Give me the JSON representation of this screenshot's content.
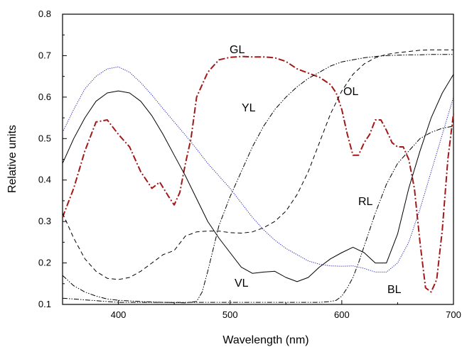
{
  "chart_data": {
    "type": "line",
    "title": "",
    "xlabel": "Wavelength (nm)",
    "ylabel": "Relative units",
    "xlim": [
      350,
      700
    ],
    "ylim": [
      0.1,
      0.8
    ],
    "xticks": [
      400,
      500,
      600,
      700
    ],
    "yticks": [
      0.1,
      0.2,
      0.3,
      0.4,
      0.5,
      0.6,
      0.7,
      0.8
    ],
    "xtick_labels": [
      "400",
      "500",
      "600",
      "700"
    ],
    "ytick_labels": [
      "0.1",
      "0.2",
      "0.3",
      "0.4",
      "0.5",
      "0.6",
      "0.7",
      "0.8"
    ],
    "grid": false,
    "legend": "none",
    "series": [
      {
        "name": "GL",
        "color": "#a01818",
        "dash": "dash-dot",
        "x": [
          350,
          360,
          370,
          380,
          390,
          400,
          410,
          420,
          430,
          437,
          445,
          450,
          455,
          460,
          465,
          470,
          480,
          490,
          500,
          510,
          520,
          530,
          540,
          550,
          560,
          570,
          580,
          590,
          595,
          600,
          605,
          610,
          615,
          620,
          625,
          630,
          635,
          640,
          645,
          650,
          655,
          660,
          665,
          670,
          675,
          680,
          685,
          690,
          695,
          700
        ],
        "y": [
          0.31,
          0.38,
          0.47,
          0.54,
          0.545,
          0.51,
          0.48,
          0.42,
          0.38,
          0.395,
          0.36,
          0.34,
          0.37,
          0.44,
          0.5,
          0.6,
          0.66,
          0.69,
          0.696,
          0.698,
          0.697,
          0.697,
          0.695,
          0.686,
          0.668,
          0.658,
          0.648,
          0.63,
          0.61,
          0.57,
          0.51,
          0.46,
          0.46,
          0.49,
          0.51,
          0.545,
          0.545,
          0.52,
          0.49,
          0.48,
          0.48,
          0.45,
          0.38,
          0.25,
          0.14,
          0.13,
          0.16,
          0.28,
          0.45,
          0.56
        ]
      },
      {
        "name": "OL",
        "color": "#000000",
        "dash": "dashed",
        "x": [
          350,
          360,
          370,
          380,
          390,
          400,
          410,
          420,
          430,
          440,
          450,
          460,
          470,
          480,
          490,
          500,
          510,
          520,
          530,
          540,
          550,
          560,
          570,
          580,
          590,
          600,
          610,
          620,
          630,
          640,
          650,
          660,
          670,
          680,
          690,
          700
        ],
        "y": [
          0.32,
          0.26,
          0.21,
          0.18,
          0.163,
          0.16,
          0.165,
          0.18,
          0.2,
          0.22,
          0.23,
          0.265,
          0.275,
          0.277,
          0.277,
          0.273,
          0.272,
          0.275,
          0.285,
          0.3,
          0.325,
          0.365,
          0.42,
          0.49,
          0.56,
          0.615,
          0.655,
          0.68,
          0.695,
          0.703,
          0.707,
          0.71,
          0.713,
          0.714,
          0.714,
          0.714
        ]
      },
      {
        "name": "YL",
        "color": "#000000",
        "dash": "dash-dot-dot",
        "x": [
          350,
          360,
          370,
          380,
          390,
          400,
          420,
          440,
          460,
          470,
          475,
          480,
          490,
          500,
          510,
          520,
          530,
          540,
          550,
          560,
          570,
          580,
          590,
          600,
          610,
          620,
          630,
          640,
          650,
          660,
          670,
          680,
          690,
          700
        ],
        "y": [
          0.17,
          0.145,
          0.13,
          0.12,
          0.113,
          0.11,
          0.107,
          0.105,
          0.104,
          0.107,
          0.13,
          0.18,
          0.29,
          0.36,
          0.42,
          0.48,
          0.53,
          0.57,
          0.6,
          0.625,
          0.645,
          0.66,
          0.675,
          0.685,
          0.69,
          0.695,
          0.698,
          0.7,
          0.701,
          0.702,
          0.702,
          0.703,
          0.703,
          0.703
        ]
      },
      {
        "name": "VL",
        "color": "#000000",
        "dash": "solid",
        "x": [
          350,
          360,
          370,
          380,
          390,
          400,
          410,
          420,
          430,
          440,
          450,
          460,
          470,
          480,
          490,
          500,
          510,
          520,
          530,
          540,
          550,
          560,
          570,
          580,
          590,
          600,
          610,
          620,
          630,
          640,
          650,
          660,
          670,
          680,
          690,
          700
        ],
        "y": [
          0.44,
          0.5,
          0.55,
          0.59,
          0.61,
          0.615,
          0.61,
          0.59,
          0.555,
          0.51,
          0.46,
          0.41,
          0.355,
          0.3,
          0.26,
          0.225,
          0.19,
          0.175,
          0.178,
          0.18,
          0.165,
          0.155,
          0.165,
          0.19,
          0.21,
          0.225,
          0.238,
          0.225,
          0.2,
          0.2,
          0.27,
          0.38,
          0.47,
          0.55,
          0.61,
          0.655
        ]
      },
      {
        "name": "BL",
        "color": "#2020b0",
        "dash": "dotted",
        "x": [
          350,
          360,
          370,
          380,
          390,
          400,
          410,
          420,
          430,
          440,
          450,
          460,
          470,
          480,
          490,
          500,
          510,
          520,
          530,
          540,
          550,
          560,
          570,
          580,
          590,
          600,
          610,
          620,
          630,
          640,
          650,
          660,
          670,
          680,
          690,
          700
        ],
        "y": [
          0.515,
          0.57,
          0.62,
          0.65,
          0.668,
          0.673,
          0.66,
          0.635,
          0.605,
          0.572,
          0.54,
          0.508,
          0.475,
          0.44,
          0.41,
          0.38,
          0.345,
          0.31,
          0.28,
          0.255,
          0.235,
          0.22,
          0.205,
          0.197,
          0.193,
          0.192,
          0.193,
          0.187,
          0.178,
          0.178,
          0.2,
          0.25,
          0.33,
          0.42,
          0.51,
          0.6
        ]
      },
      {
        "name": "RL",
        "color": "#000000",
        "dash": "dash-dot-dot",
        "x": [
          350,
          400,
          450,
          500,
          550,
          580,
          590,
          595,
          600,
          605,
          610,
          615,
          620,
          630,
          640,
          650,
          660,
          670,
          680,
          690,
          700
        ],
        "y": [
          0.115,
          0.105,
          0.105,
          0.105,
          0.105,
          0.105,
          0.107,
          0.11,
          0.12,
          0.14,
          0.165,
          0.2,
          0.24,
          0.32,
          0.39,
          0.44,
          0.47,
          0.5,
          0.515,
          0.525,
          0.53
        ]
      }
    ],
    "annotations": [
      "GL",
      "OL",
      "YL",
      "RL",
      "VL",
      "BL"
    ]
  }
}
